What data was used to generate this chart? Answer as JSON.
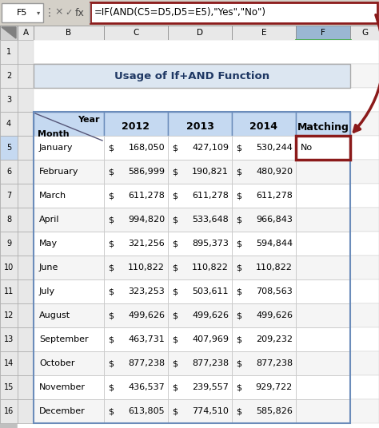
{
  "title": "Usage of If+AND Function",
  "formula_bar_text": "=IF(AND(C5=D5,D5=E5),\"Yes\",\"No\")",
  "cell_ref": "F5",
  "months": [
    "January",
    "February",
    "March",
    "April",
    "May",
    "June",
    "July",
    "August",
    "September",
    "October",
    "November",
    "December"
  ],
  "col2012": [
    168050,
    586999,
    611278,
    994820,
    321256,
    110822,
    323253,
    499626,
    463731,
    877238,
    436537,
    613805
  ],
  "col2013": [
    427109,
    190821,
    611278,
    533648,
    895373,
    110822,
    503611,
    499626,
    407969,
    877238,
    239557,
    774510
  ],
  "col2014": [
    530244,
    480920,
    611278,
    966843,
    594844,
    110822,
    708563,
    499626,
    209232,
    877238,
    929722,
    585826
  ],
  "matching_row0": "No",
  "header_blue": "#c5d9f1",
  "title_blue": "#dce6f1",
  "selected_col_header": "#9ab7d3",
  "selected_row_header": "#c5d9f1",
  "selected_cell_border": "#8b1a1a",
  "arrow_color": "#8b1a1a",
  "col_header_bg": "#e8e8e8",
  "row_header_bg": "#e8e8e8",
  "sheet_bg": "#ffffff",
  "outer_bg": "#c0c0c0",
  "formula_bar_bg": "#f0f0f0",
  "grid_line": "#d0d0d0",
  "table_border": "#6b8cba",
  "row_alt_bg": "#f5f5f5"
}
